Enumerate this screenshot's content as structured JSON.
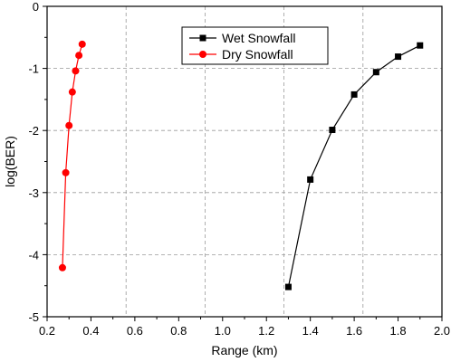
{
  "chart_data": {
    "type": "line",
    "xlabel": "Range (km)",
    "ylabel": "log(BER)",
    "xlim": [
      0.2,
      2.0
    ],
    "ylim": [
      -5,
      0
    ],
    "xticks": [
      "0.2",
      "0.4",
      "0.6",
      "0.8",
      "1.0",
      "1.2",
      "1.4",
      "1.6",
      "1.8",
      "2.0"
    ],
    "yticks": [
      "0",
      "-1",
      "-2",
      "-3",
      "-4",
      "-5"
    ],
    "grid": true,
    "legend_position": "top-center",
    "series": [
      {
        "name": "Wet Snowfall",
        "color": "#000000",
        "marker": "square",
        "x": [
          1.3,
          1.4,
          1.5,
          1.6,
          1.7,
          1.8,
          1.9
        ],
        "y": [
          -4.52,
          -2.79,
          -1.99,
          -1.42,
          -1.06,
          -0.81,
          -0.63
        ]
      },
      {
        "name": "Dry Snowfall",
        "color": "#ff0000",
        "marker": "circle",
        "x": [
          0.27,
          0.285,
          0.3,
          0.315,
          0.33,
          0.345,
          0.36
        ],
        "y": [
          -4.21,
          -2.68,
          -1.92,
          -1.38,
          -1.04,
          -0.79,
          -0.61
        ]
      }
    ]
  }
}
